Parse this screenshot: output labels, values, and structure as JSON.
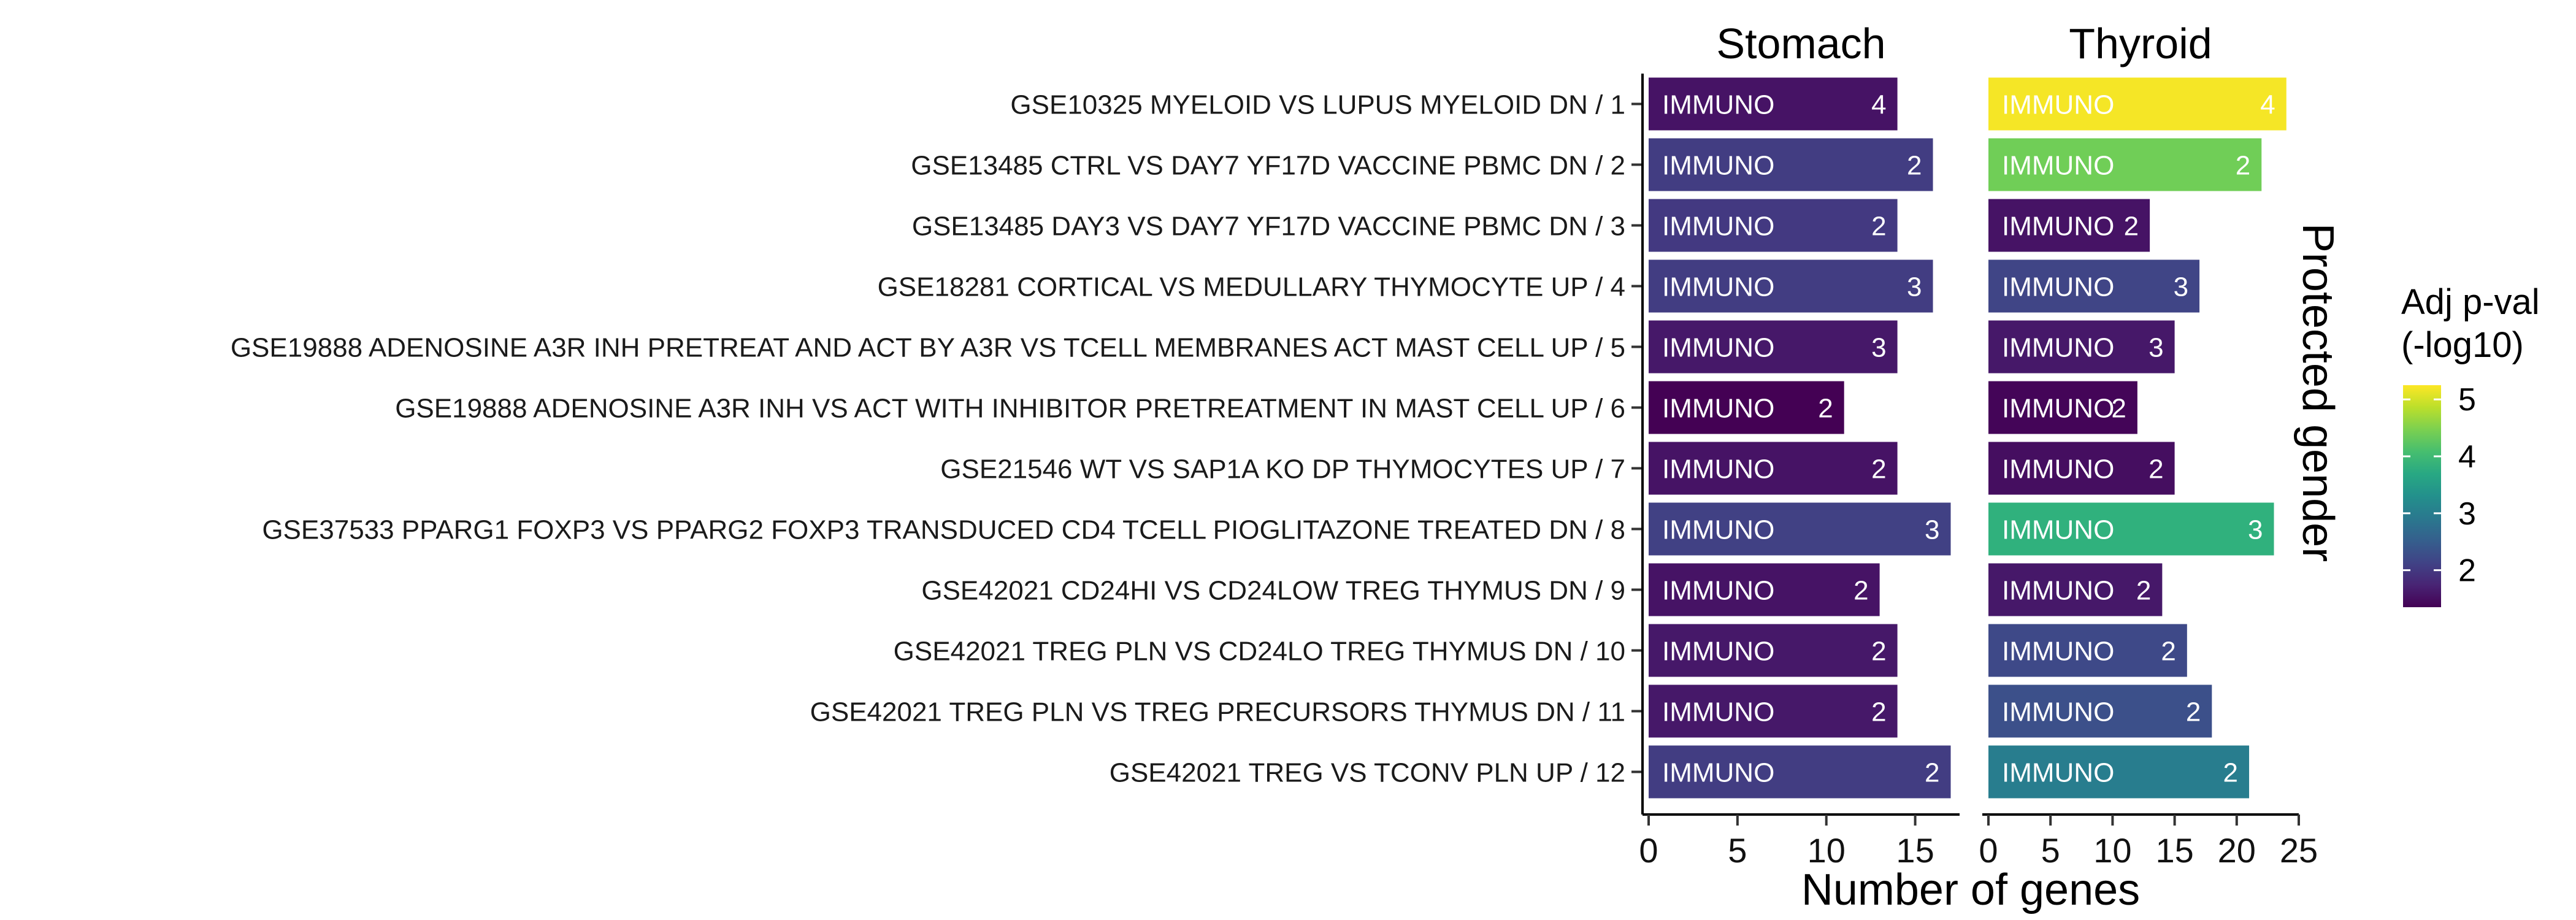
{
  "chart_data": {
    "type": "bar",
    "orientation": "horizontal",
    "xlabel": "Number of genes",
    "facet_title_right": "Protected gender",
    "bar_label": "IMMUNO",
    "categories": [
      "GSE10325 MYELOID VS LUPUS MYELOID DN / 1",
      "GSE13485 CTRL VS DAY7 YF17D VACCINE PBMC DN / 2",
      "GSE13485 DAY3 VS DAY7 YF17D VACCINE PBMC DN / 3",
      "GSE18281 CORTICAL VS MEDULLARY THYMOCYTE UP / 4",
      "GSE19888 ADENOSINE A3R INH PRETREAT AND ACT BY A3R VS TCELL MEMBRANES ACT MAST CELL UP / 5",
      "GSE19888 ADENOSINE A3R INH VS ACT WITH INHIBITOR PRETREATMENT IN MAST CELL UP / 6",
      "GSE21546 WT VS SAP1A KO DP THYMOCYTES UP / 7",
      "GSE37533 PPARG1 FOXP3 VS PPARG2 FOXP3 TRANSDUCED CD4 TCELL PIOGLITAZONE TREATED DN / 8",
      "GSE42021 CD24HI VS CD24LOW TREG THYMUS DN / 9",
      "GSE42021 TREG PLN VS CD24LO TREG THYMUS DN / 10",
      "GSE42021 TREG PLN VS TREG PRECURSORS THYMUS DN / 11",
      "GSE42021 TREG VS TCONV PLN UP / 12"
    ],
    "panels": [
      {
        "name": "Stomach",
        "xlim": [
          0,
          17.5
        ],
        "xticks": [
          0,
          5,
          10,
          15
        ],
        "values": [
          14,
          16,
          14,
          16,
          14,
          11,
          14,
          17,
          13,
          14,
          14,
          17
        ],
        "labels": [
          "4",
          "2",
          "2",
          "3",
          "3",
          "2",
          "2",
          "3",
          "2",
          "2",
          "2",
          "2"
        ],
        "adj_pval": [
          1.55,
          2.05,
          2.0,
          2.05,
          1.6,
          1.35,
          1.55,
          2.1,
          1.55,
          1.6,
          1.6,
          2.05
        ]
      },
      {
        "name": "Thyroid",
        "xlim": [
          0,
          25
        ],
        "xticks": [
          0,
          5,
          10,
          15,
          20,
          25
        ],
        "values": [
          24,
          22,
          13,
          17,
          15,
          12,
          15,
          23,
          14,
          16,
          18,
          21
        ],
        "labels": [
          "4",
          "2",
          "2",
          "3",
          "3",
          "2",
          "2",
          "3",
          "2",
          "2",
          "2",
          "2"
        ],
        "adj_pval": [
          5.2,
          4.4,
          1.55,
          2.15,
          1.6,
          1.4,
          1.5,
          3.85,
          1.6,
          2.2,
          2.3,
          3.0
        ]
      }
    ],
    "colorbar": {
      "title_line1": "Adj p-val",
      "title_line2": "(-log10)",
      "ticks": [
        2,
        3,
        4,
        5
      ],
      "range": [
        1.35,
        5.25
      ],
      "colormap": "viridis"
    }
  }
}
